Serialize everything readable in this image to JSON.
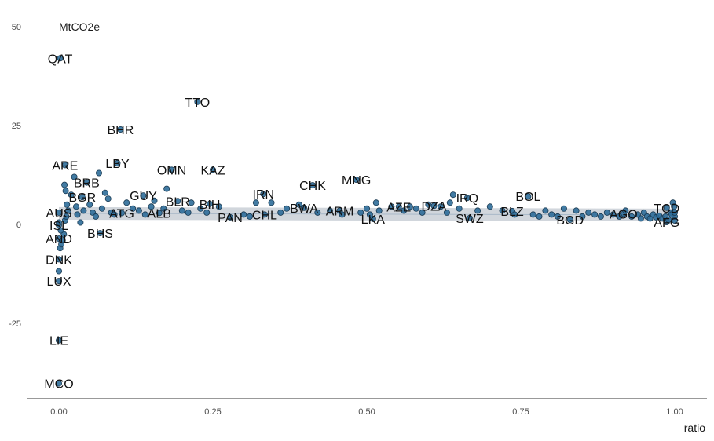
{
  "chart_data": {
    "type": "scatter",
    "title": "",
    "xlabel": "ratio",
    "ylabel": "MtCO2e",
    "xlim": [
      -0.05,
      1.05
    ],
    "ylim": [
      -44,
      52
    ],
    "x_ticks": [
      {
        "value": 0,
        "label": "0.00"
      },
      {
        "value": 0.25,
        "label": "0.25"
      },
      {
        "value": 0.5,
        "label": "0.50"
      },
      {
        "value": 0.75,
        "label": "0.75"
      },
      {
        "value": 1,
        "label": "1.00"
      }
    ],
    "y_ticks": [
      {
        "value": 50,
        "label": "50"
      },
      {
        "value": 25,
        "label": "25"
      },
      {
        "value": 0,
        "label": "0"
      },
      {
        "value": -25,
        "label": "-25"
      }
    ],
    "grid": false,
    "point_color": "#2e6d99",
    "point_stroke": "#1a3a52",
    "band_color": "#c9cfd6",
    "line_color": "#a8b8c8",
    "trend": {
      "x": [
        0,
        1
      ],
      "y": [
        2.8,
        2.4
      ],
      "band_halfwidth": 1.6
    },
    "labels": [
      {
        "text": "QAT",
        "x": 0.002,
        "y": 42
      },
      {
        "text": "TTO",
        "x": 0.225,
        "y": 31
      },
      {
        "text": "BHR",
        "x": 0.1,
        "y": 24
      },
      {
        "text": "ARE",
        "x": 0.01,
        "y": 15
      },
      {
        "text": "LBY",
        "x": 0.095,
        "y": 15.5
      },
      {
        "text": "OMN",
        "x": 0.183,
        "y": 13.8
      },
      {
        "text": "KAZ",
        "x": 0.25,
        "y": 13.8
      },
      {
        "text": "BRB",
        "x": 0.045,
        "y": 10.6
      },
      {
        "text": "CHK",
        "x": 0.412,
        "y": 9.9
      },
      {
        "text": "MNG",
        "x": 0.483,
        "y": 11.3
      },
      {
        "text": "IRN",
        "x": 0.332,
        "y": 7.7
      },
      {
        "text": "GUY",
        "x": 0.137,
        "y": 7.3
      },
      {
        "text": "BGR",
        "x": 0.038,
        "y": 6.9
      },
      {
        "text": "BLR",
        "x": 0.193,
        "y": 5.9
      },
      {
        "text": "BIH",
        "x": 0.245,
        "y": 5.2
      },
      {
        "text": "BOL",
        "x": 0.762,
        "y": 7.1
      },
      {
        "text": "IRQ",
        "x": 0.663,
        "y": 6.7
      },
      {
        "text": "DZA",
        "x": 0.609,
        "y": 4.7
      },
      {
        "text": "AZE",
        "x": 0.552,
        "y": 4.5
      },
      {
        "text": "BWA",
        "x": 0.398,
        "y": 4.2
      },
      {
        "text": "TCD",
        "x": 0.987,
        "y": 4.2
      },
      {
        "text": "AUS",
        "x": 0.0,
        "y": 3.0
      },
      {
        "text": "ATG",
        "x": 0.102,
        "y": 2.9
      },
      {
        "text": "ALB",
        "x": 0.163,
        "y": 2.9
      },
      {
        "text": "ARM",
        "x": 0.456,
        "y": 3.5
      },
      {
        "text": "BLZ",
        "x": 0.736,
        "y": 3.4
      },
      {
        "text": "AGO",
        "x": 0.917,
        "y": 2.7
      },
      {
        "text": "CHL",
        "x": 0.334,
        "y": 2.5
      },
      {
        "text": "PAN",
        "x": 0.278,
        "y": 1.8
      },
      {
        "text": "SWZ",
        "x": 0.667,
        "y": 1.6
      },
      {
        "text": "LKA",
        "x": 0.51,
        "y": 1.4
      },
      {
        "text": "BGD",
        "x": 0.83,
        "y": 1.2
      },
      {
        "text": "AFG",
        "x": 0.987,
        "y": 0.6
      },
      {
        "text": "ISL",
        "x": 0.0,
        "y": -0.2
      },
      {
        "text": "BHS",
        "x": 0.067,
        "y": -2.2
      },
      {
        "text": "AND",
        "x": 0.0,
        "y": -3.6
      },
      {
        "text": "DNK",
        "x": 0.0,
        "y": -8.8
      },
      {
        "text": "LUX",
        "x": 0.0,
        "y": -14.3
      },
      {
        "text": "LIE",
        "x": 0.0,
        "y": -29.3
      },
      {
        "text": "MCO",
        "x": 0.0,
        "y": -40.2
      }
    ],
    "points": [
      [
        0.002,
        42
      ],
      [
        0.225,
        31
      ],
      [
        0.1,
        24
      ],
      [
        0.01,
        15
      ],
      [
        0.095,
        15.5
      ],
      [
        0.183,
        13.8
      ],
      [
        0.25,
        13.8
      ],
      [
        0.045,
        10.6
      ],
      [
        0.412,
        9.9
      ],
      [
        0.483,
        11.3
      ],
      [
        0.332,
        7.7
      ],
      [
        0.137,
        7.3
      ],
      [
        0.038,
        6.9
      ],
      [
        0.193,
        5.9
      ],
      [
        0.245,
        5.2
      ],
      [
        0.762,
        7.1
      ],
      [
        0.663,
        6.7
      ],
      [
        0.609,
        4.7
      ],
      [
        0.552,
        4.5
      ],
      [
        0.398,
        4.2
      ],
      [
        0.987,
        4.2
      ],
      [
        0.0,
        3.0
      ],
      [
        0.102,
        2.9
      ],
      [
        0.163,
        2.9
      ],
      [
        0.456,
        3.5
      ],
      [
        0.736,
        3.4
      ],
      [
        0.917,
        2.7
      ],
      [
        0.334,
        2.5
      ],
      [
        0.278,
        1.8
      ],
      [
        0.667,
        1.6
      ],
      [
        0.51,
        1.4
      ],
      [
        0.83,
        1.2
      ],
      [
        0.987,
        0.6
      ],
      [
        0.0,
        -0.2
      ],
      [
        0.067,
        -2.2
      ],
      [
        0.0,
        -3.6
      ],
      [
        0.0,
        -8.8
      ],
      [
        0.0,
        -14.3
      ],
      [
        0.0,
        -29.3
      ],
      [
        0.0,
        -40.2
      ],
      [
        0.0,
        -11.8
      ],
      [
        0.002,
        -6.0
      ],
      [
        0.004,
        -5.0
      ],
      [
        0.006,
        -4.0
      ],
      [
        0.008,
        -2.5
      ],
      [
        0.003,
        -1.5
      ],
      [
        0.0,
        0.5
      ],
      [
        0.01,
        1.0
      ],
      [
        0.012,
        2.0
      ],
      [
        0.015,
        3.5
      ],
      [
        0.013,
        5.0
      ],
      [
        0.011,
        8.5
      ],
      [
        0.009,
        10.0
      ],
      [
        0.02,
        7.5
      ],
      [
        0.025,
        12.0
      ],
      [
        0.028,
        4.5
      ],
      [
        0.03,
        2.5
      ],
      [
        0.035,
        0.5
      ],
      [
        0.04,
        3.5
      ],
      [
        0.05,
        5.0
      ],
      [
        0.055,
        3.0
      ],
      [
        0.06,
        2.0
      ],
      [
        0.065,
        13.0
      ],
      [
        0.07,
        4.0
      ],
      [
        0.075,
        8.0
      ],
      [
        0.08,
        6.5
      ],
      [
        0.085,
        3.0
      ],
      [
        0.09,
        2.5
      ],
      [
        0.11,
        5.5
      ],
      [
        0.12,
        4.0
      ],
      [
        0.13,
        3.5
      ],
      [
        0.14,
        2.5
      ],
      [
        0.15,
        4.5
      ],
      [
        0.155,
        6.0
      ],
      [
        0.17,
        4.0
      ],
      [
        0.175,
        9.0
      ],
      [
        0.2,
        3.5
      ],
      [
        0.21,
        3.0
      ],
      [
        0.215,
        5.5
      ],
      [
        0.23,
        4.0
      ],
      [
        0.24,
        3.0
      ],
      [
        0.26,
        4.5
      ],
      [
        0.3,
        2.5
      ],
      [
        0.31,
        2.0
      ],
      [
        0.32,
        5.5
      ],
      [
        0.345,
        5.5
      ],
      [
        0.36,
        3.0
      ],
      [
        0.37,
        4.0
      ],
      [
        0.39,
        5.0
      ],
      [
        0.42,
        3.0
      ],
      [
        0.44,
        3.5
      ],
      [
        0.46,
        2.5
      ],
      [
        0.49,
        3.0
      ],
      [
        0.5,
        4.0
      ],
      [
        0.505,
        2.5
      ],
      [
        0.515,
        5.5
      ],
      [
        0.52,
        3.5
      ],
      [
        0.54,
        4.5
      ],
      [
        0.56,
        3.5
      ],
      [
        0.57,
        4.5
      ],
      [
        0.58,
        4.0
      ],
      [
        0.59,
        3.0
      ],
      [
        0.6,
        5.0
      ],
      [
        0.62,
        4.5
      ],
      [
        0.63,
        3.0
      ],
      [
        0.635,
        5.5
      ],
      [
        0.64,
        7.5
      ],
      [
        0.65,
        4.0
      ],
      [
        0.68,
        3.5
      ],
      [
        0.7,
        4.5
      ],
      [
        0.72,
        3.5
      ],
      [
        0.74,
        2.5
      ],
      [
        0.77,
        2.5
      ],
      [
        0.78,
        2.0
      ],
      [
        0.79,
        3.5
      ],
      [
        0.8,
        2.5
      ],
      [
        0.81,
        2.0
      ],
      [
        0.82,
        4.0
      ],
      [
        0.84,
        3.5
      ],
      [
        0.85,
        2.0
      ],
      [
        0.86,
        3.0
      ],
      [
        0.87,
        2.5
      ],
      [
        0.88,
        2.0
      ],
      [
        0.89,
        3.0
      ],
      [
        0.9,
        2.5
      ],
      [
        0.91,
        2.0
      ],
      [
        0.92,
        3.5
      ],
      [
        0.93,
        2.0
      ],
      [
        0.94,
        2.5
      ],
      [
        0.945,
        1.5
      ],
      [
        0.95,
        3.0
      ],
      [
        0.955,
        2.0
      ],
      [
        0.96,
        1.5
      ],
      [
        0.965,
        2.5
      ],
      [
        0.97,
        1.8
      ],
      [
        0.975,
        2.2
      ],
      [
        0.98,
        1.5
      ],
      [
        0.985,
        2.0
      ],
      [
        0.99,
        1.2
      ],
      [
        0.993,
        3.0
      ],
      [
        0.995,
        2.5
      ],
      [
        0.997,
        5.5
      ],
      [
        1.0,
        2.0
      ],
      [
        1.0,
        3.0
      ],
      [
        1.0,
        1.0
      ],
      [
        0.999,
        4.5
      ]
    ]
  }
}
